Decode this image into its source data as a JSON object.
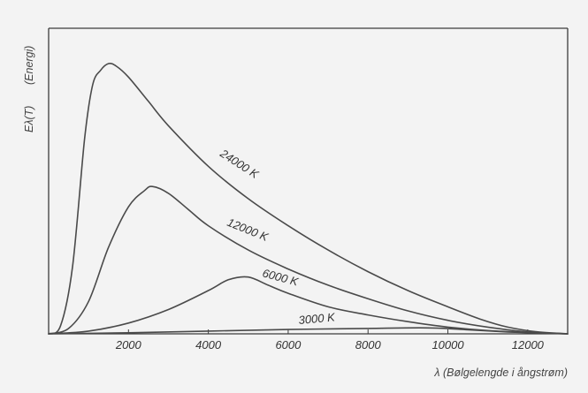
{
  "chart_data": {
    "type": "line",
    "ylabel": "Eλ(T)",
    "ylabel_note": "(Energi)",
    "xlabel": "λ (Bølgelengde i ångstrøm)",
    "xlim": [
      0,
      13000
    ],
    "ylim": [
      0,
      1
    ],
    "x_ticks": [
      2000,
      4000,
      6000,
      8000,
      10000,
      12000
    ],
    "x_tick_labels": [
      "2000",
      "4000",
      "6000",
      "8000",
      "10000",
      "12000"
    ],
    "grid": false,
    "series": [
      {
        "name": "24000 K",
        "x": [
          0,
          300,
          600,
          900,
          1100,
          1300,
          1500,
          1700,
          2000,
          2500,
          3000,
          4000,
          5000,
          6000,
          7000,
          8000,
          9000,
          10000,
          10800,
          11500,
          12200,
          13000
        ],
        "y": [
          0,
          0.03,
          0.25,
          0.72,
          0.92,
          0.975,
          1.0,
          0.99,
          0.95,
          0.86,
          0.77,
          0.62,
          0.5,
          0.4,
          0.31,
          0.23,
          0.16,
          0.1,
          0.055,
          0.025,
          0.008,
          0
        ]
      },
      {
        "name": "12000 K",
        "x": [
          0,
          500,
          1000,
          1500,
          2000,
          2400,
          2600,
          3000,
          3500,
          4000,
          5000,
          6000,
          7000,
          8000,
          9000,
          10000,
          11000,
          12000,
          13000
        ],
        "y": [
          0,
          0.02,
          0.12,
          0.32,
          0.47,
          0.53,
          0.545,
          0.52,
          0.46,
          0.4,
          0.31,
          0.24,
          0.18,
          0.13,
          0.085,
          0.05,
          0.025,
          0.007,
          0
        ]
      },
      {
        "name": "6000 K",
        "x": [
          0,
          1000,
          2000,
          3000,
          4000,
          4500,
          5000,
          5500,
          6000,
          7000,
          8000,
          9000,
          10000,
          11000,
          12000,
          13000
        ],
        "y": [
          0,
          0.01,
          0.04,
          0.09,
          0.16,
          0.2,
          0.21,
          0.18,
          0.15,
          0.1,
          0.07,
          0.045,
          0.025,
          0.012,
          0.005,
          0
        ]
      },
      {
        "name": "3000 K",
        "x": [
          0,
          2000,
          4000,
          6000,
          8000,
          9500,
          10500,
          11500,
          12500,
          13000
        ],
        "y": [
          0,
          0.004,
          0.01,
          0.016,
          0.02,
          0.022,
          0.015,
          0.007,
          0.002,
          0
        ]
      }
    ]
  }
}
